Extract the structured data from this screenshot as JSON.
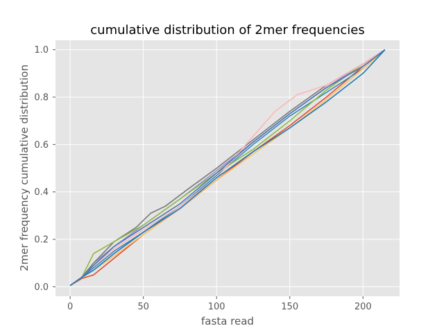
{
  "chart_data": {
    "type": "line",
    "title": "cumulative distribution of 2mer frequencies",
    "xlabel": "fasta read",
    "ylabel": "2mer frequency cumulative distribution",
    "xlim": [
      -10,
      225
    ],
    "ylim": [
      -0.04,
      1.04
    ],
    "xticks": [
      0,
      50,
      100,
      150,
      200
    ],
    "xtick_labels": [
      "0",
      "50",
      "100",
      "150",
      "200"
    ],
    "yticks": [
      0.0,
      0.2,
      0.4,
      0.6,
      0.8,
      1.0
    ],
    "ytick_labels": [
      "0.0",
      "0.2",
      "0.4",
      "0.6",
      "0.8",
      "1.0"
    ],
    "grid": true,
    "background": "#e5e5e5",
    "series": [
      {
        "color": "#e24a33",
        "x": [
          0,
          8,
          16,
          30,
          50,
          75,
          100,
          125,
          150,
          175,
          200,
          215
        ],
        "y": [
          0.005,
          0.035,
          0.05,
          0.12,
          0.22,
          0.33,
          0.45,
          0.57,
          0.68,
          0.8,
          0.93,
          1.0
        ]
      },
      {
        "color": "#348abd",
        "x": [
          0,
          8,
          16,
          30,
          50,
          75,
          100,
          125,
          150,
          175,
          200,
          215
        ],
        "y": [
          0.005,
          0.04,
          0.08,
          0.15,
          0.23,
          0.34,
          0.47,
          0.6,
          0.72,
          0.82,
          0.92,
          1.0
        ]
      },
      {
        "color": "#988ed5",
        "x": [
          0,
          8,
          16,
          30,
          50,
          75,
          100,
          125,
          150,
          175,
          200,
          215
        ],
        "y": [
          0.005,
          0.04,
          0.1,
          0.17,
          0.26,
          0.37,
          0.49,
          0.61,
          0.73,
          0.84,
          0.94,
          1.0
        ]
      },
      {
        "color": "#777777",
        "x": [
          0,
          8,
          16,
          30,
          45,
          55,
          65,
          80,
          100,
          125,
          150,
          175,
          200,
          215
        ],
        "y": [
          0.005,
          0.04,
          0.1,
          0.19,
          0.25,
          0.31,
          0.34,
          0.41,
          0.5,
          0.62,
          0.74,
          0.85,
          0.94,
          1.0
        ]
      },
      {
        "color": "#fbc15e",
        "x": [
          0,
          8,
          16,
          30,
          50,
          75,
          100,
          125,
          150,
          175,
          200,
          215
        ],
        "y": [
          0.005,
          0.04,
          0.07,
          0.13,
          0.22,
          0.33,
          0.45,
          0.56,
          0.67,
          0.79,
          0.92,
          1.0
        ]
      },
      {
        "color": "#8eba42",
        "x": [
          0,
          8,
          16,
          30,
          50,
          75,
          100,
          125,
          150,
          175,
          200,
          215
        ],
        "y": [
          0.005,
          0.04,
          0.14,
          0.19,
          0.26,
          0.37,
          0.48,
          0.58,
          0.7,
          0.83,
          0.94,
          1.0
        ]
      },
      {
        "color": "#ffb5b8",
        "x": [
          0,
          8,
          16,
          30,
          50,
          75,
          100,
          120,
          140,
          155,
          175,
          200,
          215
        ],
        "y": [
          0.005,
          0.04,
          0.09,
          0.16,
          0.24,
          0.34,
          0.46,
          0.6,
          0.74,
          0.81,
          0.85,
          0.94,
          1.0
        ]
      },
      {
        "color": "#4c72b0",
        "x": [
          0,
          8,
          16,
          30,
          50,
          75,
          100,
          125,
          150,
          175,
          200,
          215
        ],
        "y": [
          0.005,
          0.04,
          0.09,
          0.17,
          0.25,
          0.35,
          0.48,
          0.61,
          0.73,
          0.84,
          0.93,
          1.0
        ]
      },
      {
        "color": "#1f77b4",
        "x": [
          0,
          8,
          16,
          30,
          50,
          75,
          100,
          125,
          150,
          175,
          200,
          215
        ],
        "y": [
          0.005,
          0.04,
          0.07,
          0.14,
          0.23,
          0.33,
          0.46,
          0.57,
          0.67,
          0.78,
          0.9,
          1.0
        ]
      }
    ]
  }
}
